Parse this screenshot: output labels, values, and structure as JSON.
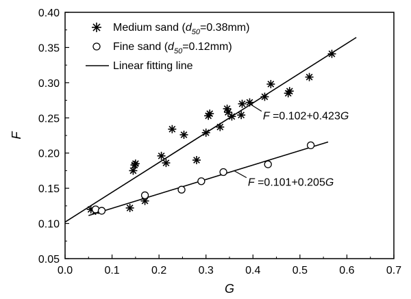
{
  "chart_data": {
    "type": "scatter",
    "xlabel": "G",
    "ylabel": "F",
    "xlim": [
      0.0,
      0.7
    ],
    "ylim": [
      0.05,
      0.4
    ],
    "x_ticks": [
      "0.0",
      "0.1",
      "0.2",
      "0.3",
      "0.4",
      "0.5",
      "0.6",
      "0.7"
    ],
    "y_ticks": [
      "0.05",
      "0.10",
      "0.15",
      "0.20",
      "0.25",
      "0.30",
      "0.35",
      "0.40"
    ],
    "legend_position": "top-left",
    "grid": false,
    "series": [
      {
        "name": "Medium sand (d50=0.38mm)",
        "marker": "asterisk",
        "points": [
          [
            0.055,
            0.12
          ],
          [
            0.065,
            0.118
          ],
          [
            0.138,
            0.122
          ],
          [
            0.145,
            0.175
          ],
          [
            0.148,
            0.183
          ],
          [
            0.15,
            0.185
          ],
          [
            0.17,
            0.132
          ],
          [
            0.205,
            0.196
          ],
          [
            0.215,
            0.186
          ],
          [
            0.228,
            0.234
          ],
          [
            0.253,
            0.226
          ],
          [
            0.28,
            0.19
          ],
          [
            0.3,
            0.229
          ],
          [
            0.305,
            0.253
          ],
          [
            0.308,
            0.256
          ],
          [
            0.33,
            0.237
          ],
          [
            0.345,
            0.263
          ],
          [
            0.347,
            0.258
          ],
          [
            0.355,
            0.252
          ],
          [
            0.375,
            0.254
          ],
          [
            0.377,
            0.27
          ],
          [
            0.393,
            0.272
          ],
          [
            0.425,
            0.28
          ],
          [
            0.438,
            0.298
          ],
          [
            0.475,
            0.285
          ],
          [
            0.478,
            0.288
          ],
          [
            0.52,
            0.308
          ],
          [
            0.568,
            0.341
          ]
        ]
      },
      {
        "name": "Fine sand (d50=0.12mm)",
        "marker": "circle",
        "points": [
          [
            0.065,
            0.12
          ],
          [
            0.078,
            0.118
          ],
          [
            0.17,
            0.14
          ],
          [
            0.248,
            0.148
          ],
          [
            0.29,
            0.16
          ],
          [
            0.337,
            0.173
          ],
          [
            0.432,
            0.184
          ],
          [
            0.523,
            0.211
          ]
        ]
      }
    ],
    "fit_lines": [
      {
        "name": "Linear fitting line",
        "intercept": 0.102,
        "slope": 0.423,
        "x_range": [
          0.0,
          0.62
        ],
        "equation": "F =0.102+0.423G"
      },
      {
        "name": "Linear fitting line",
        "intercept": 0.101,
        "slope": 0.205,
        "x_range": [
          0.05,
          0.56
        ],
        "equation": "F =0.101+0.205G"
      }
    ],
    "legend": [
      {
        "marker": "asterisk",
        "label_before": "Medium sand (",
        "sym": "d",
        "sub": "50",
        "label_after": "=0.38mm)"
      },
      {
        "marker": "circle",
        "label_before": "Fine sand (",
        "sym": "d",
        "sub": "50",
        "label_after": "=0.12mm)"
      },
      {
        "marker": "line",
        "label_before": "Linear fitting line",
        "sym": "",
        "sub": "",
        "label_after": ""
      }
    ],
    "annotations": [
      {
        "target": "fit-medium",
        "sym": "F",
        "rest": " =0.102+0.423",
        "sym2": "G",
        "at_x": 0.395,
        "label_dx": 1,
        "label_dy": 1
      },
      {
        "target": "fit-fine",
        "sym": "F",
        "rest": " =0.101+0.205",
        "sym2": "G",
        "at_x": 0.36,
        "label_dx": 1,
        "label_dy": 1
      }
    ]
  }
}
